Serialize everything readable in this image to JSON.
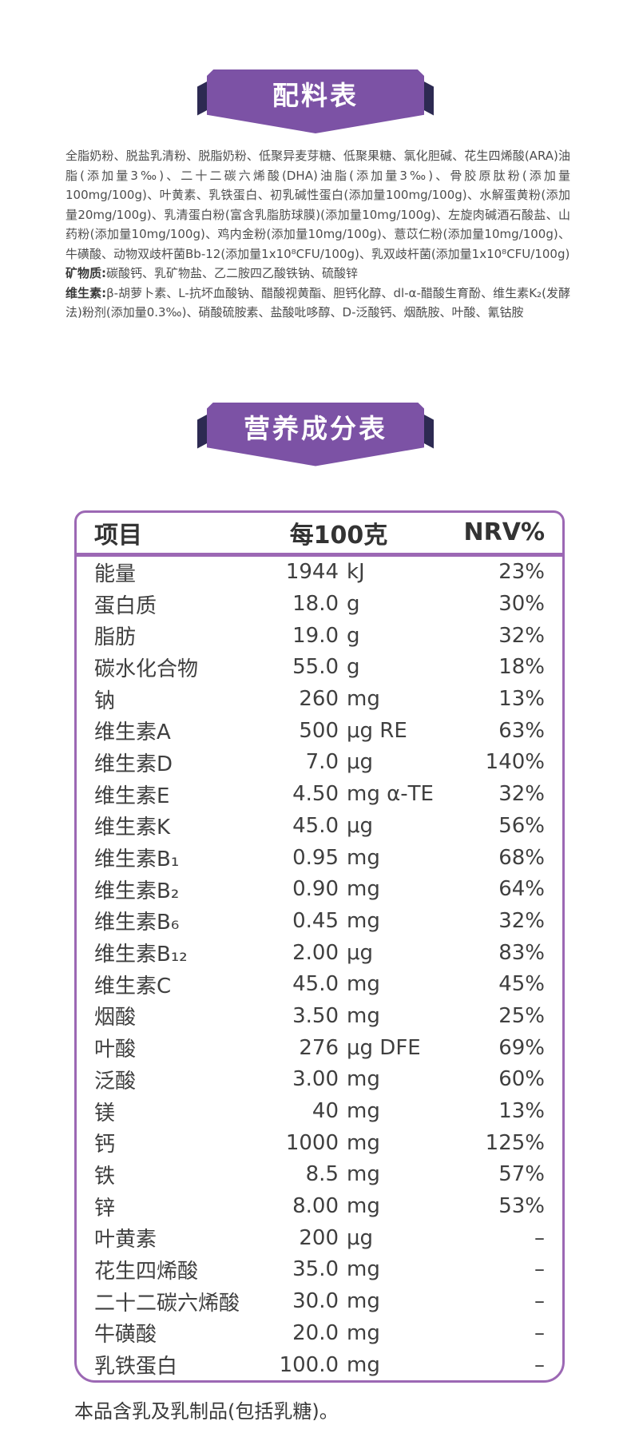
{
  "banners": {
    "ingredients_title": "配料表",
    "nutrition_title": "营养成分表"
  },
  "ingredients": {
    "main": "全脂奶粉、脱盐乳清粉、脱脂奶粉、低聚异麦芽糖、低聚果糖、氯化胆碱、花生四烯酸(ARA)油脂(添加量3‰)、二十二碳六烯酸(DHA)油脂(添加量3‰)、骨胶原肽粉(添加量100mg/100g)、叶黄素、乳铁蛋白、初乳碱性蛋白(添加量100mg/100g)、水解蛋黄粉(添加量20mg/100g)、乳清蛋白粉(富含乳脂肪球膜)(添加量10mg/100g)、左旋肉碱酒石酸盐、山药粉(添加量10mg/100g)、鸡内金粉(添加量10mg/100g)、薏苡仁粉(添加量10mg/100g)、牛磺酸、动物双歧杆菌Bb-12(添加量1x10⁸CFU/100g)、乳双歧杆菌(添加量1x10⁸CFU/100g)",
    "minerals_label": "矿物质:",
    "minerals": "碳酸钙、乳矿物盐、乙二胺四乙酸铁钠、硫酸锌",
    "vitamins_label": "维生素:",
    "vitamins": "β-胡萝卜素、L-抗坏血酸钠、醋酸视黄酯、胆钙化醇、dl-α-醋酸生育酚、维生素K₂(发酵法)粉剂(添加量0.3‰)、硝酸硫胺素、盐酸吡哆醇、D-泛酸钙、烟酰胺、叶酸、氰钴胺"
  },
  "table": {
    "headers": [
      "项目",
      "每100克",
      "NRV%"
    ],
    "rows": [
      {
        "label": "能量",
        "value": "1944",
        "unit": "kJ",
        "nrv": "23%"
      },
      {
        "label": "蛋白质",
        "value": "18.0",
        "unit": "g",
        "nrv": "30%"
      },
      {
        "label": "脂肪",
        "value": "19.0",
        "unit": "g",
        "nrv": "32%"
      },
      {
        "label": "碳水化合物",
        "value": "55.0",
        "unit": "g",
        "nrv": "18%"
      },
      {
        "label": "钠",
        "value": "260",
        "unit": "mg",
        "nrv": "13%"
      },
      {
        "label": "维生素A",
        "value": "500",
        "unit": "μg RE",
        "nrv": "63%"
      },
      {
        "label": "维生素D",
        "value": "7.0",
        "unit": "μg",
        "nrv": "140%"
      },
      {
        "label": "维生素E",
        "value": "4.50",
        "unit": "mg α-TE",
        "nrv": "32%"
      },
      {
        "label": "维生素K",
        "value": "45.0",
        "unit": "μg",
        "nrv": "56%"
      },
      {
        "label": "维生素B₁",
        "value": "0.95",
        "unit": "mg",
        "nrv": "68%"
      },
      {
        "label": "维生素B₂",
        "value": "0.90",
        "unit": "mg",
        "nrv": "64%"
      },
      {
        "label": "维生素B₆",
        "value": "0.45",
        "unit": "mg",
        "nrv": "32%"
      },
      {
        "label": "维生素B₁₂",
        "value": "2.00",
        "unit": "μg",
        "nrv": "83%"
      },
      {
        "label": "维生素C",
        "value": "45.0",
        "unit": "mg",
        "nrv": "45%"
      },
      {
        "label": "烟酸",
        "value": "3.50",
        "unit": "mg",
        "nrv": "25%"
      },
      {
        "label": "叶酸",
        "value": "276",
        "unit": "μg DFE",
        "nrv": "69%"
      },
      {
        "label": "泛酸",
        "value": "3.00",
        "unit": "mg",
        "nrv": "60%"
      },
      {
        "label": "镁",
        "value": "40",
        "unit": "mg",
        "nrv": "13%"
      },
      {
        "label": "钙",
        "value": "1000",
        "unit": "mg",
        "nrv": "125%"
      },
      {
        "label": "铁",
        "value": "8.5",
        "unit": "mg",
        "nrv": "57%"
      },
      {
        "label": "锌",
        "value": "8.00",
        "unit": "mg",
        "nrv": "53%"
      },
      {
        "label": "叶黄素",
        "value": "200",
        "unit": "μg",
        "nrv": "–"
      },
      {
        "label": "花生四烯酸",
        "value": "35.0",
        "unit": "mg",
        "nrv": "–"
      },
      {
        "label": "二十二碳六烯酸",
        "value": "30.0",
        "unit": "mg",
        "nrv": "–"
      },
      {
        "label": "牛磺酸",
        "value": "20.0",
        "unit": "mg",
        "nrv": "–"
      },
      {
        "label": "乳铁蛋白",
        "value": "100.0",
        "unit": "mg",
        "nrv": "–"
      }
    ]
  },
  "footer": {
    "allergen_note": "本品含乳及乳制品(包括乳糖)。"
  },
  "colors": {
    "banner_purple": "#7c52a5",
    "fold_navy": "#2d2a52",
    "table_border_purple": "#9c68b4",
    "text_dark": "#3f3f3f"
  }
}
